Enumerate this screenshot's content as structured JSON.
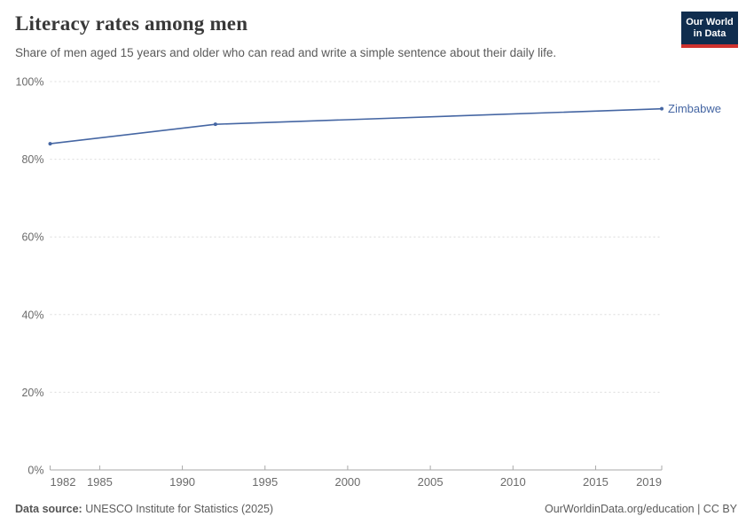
{
  "header": {
    "title": "Literacy rates among men",
    "subtitle": "Share of men aged 15 years and older who can read and write a simple sentence about their daily life."
  },
  "logo": {
    "line1": "Our World",
    "line2": "in Data",
    "bg_color": "#102d4e",
    "bar_color": "#cf322e"
  },
  "chart_data": {
    "type": "line",
    "title": "Literacy rates among men",
    "xlabel": "",
    "ylabel": "",
    "xlim": [
      1982,
      2019
    ],
    "ylim": [
      0,
      100
    ],
    "grid": "horizontal dashed",
    "x_ticks": [
      1982,
      1985,
      1990,
      1995,
      2000,
      2005,
      2010,
      2015,
      2019
    ],
    "y_ticks": [
      {
        "value": 0,
        "label": "0%"
      },
      {
        "value": 20,
        "label": "20%"
      },
      {
        "value": 40,
        "label": "40%"
      },
      {
        "value": 60,
        "label": "60%"
      },
      {
        "value": 80,
        "label": "80%"
      },
      {
        "value": 100,
        "label": "100%"
      }
    ],
    "legend_position": "end-of-line label",
    "series": [
      {
        "name": "Zimbabwe",
        "color": "#4566a3",
        "points": [
          {
            "x": 1982,
            "y": 84
          },
          {
            "x": 1992,
            "y": 89
          },
          {
            "x": 2019,
            "y": 93
          }
        ]
      }
    ],
    "colors": {
      "gridline": "#dcdcdc",
      "axis": "#a9a9a9",
      "tick_text": "#6b6b6b"
    }
  },
  "footer": {
    "datasource_label": "Data source:",
    "datasource_value": "UNESCO Institute for Statistics (2025)",
    "attribution": "OurWorldinData.org/education | CC BY"
  }
}
